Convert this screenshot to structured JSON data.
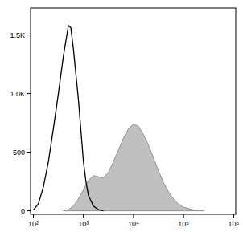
{
  "chart_data": {
    "type": "line",
    "log": "x",
    "xlim": [
      88,
      1100000
    ],
    "xticks": [
      {
        "value": 100,
        "label": "10²"
      },
      {
        "value": 1000,
        "label": "10³"
      },
      {
        "value": 10000,
        "label": "10⁴"
      },
      {
        "value": 100000,
        "label": "10⁵"
      },
      {
        "value": 1000000,
        "label": "10⁶"
      }
    ],
    "ylim": [
      -30,
      1730
    ],
    "yticks": [
      0,
      500,
      {
        "value": 1000,
        "label": "1.0K"
      },
      {
        "value": 1500,
        "label": "1.5K"
      }
    ],
    "grid": false,
    "series": [
      {
        "type": "area",
        "color": "#c0c0c0",
        "x": [
          398,
          501,
          631,
          794,
          1000,
          1259,
          1585,
          1995,
          2512,
          3162,
          3981,
          5012,
          6310,
          7943,
          10000,
          12589,
          15849,
          19953,
          25119,
          31623,
          39811,
          50119,
          63096,
          79433,
          100000,
          158489,
          251189
        ],
        "values": [
          0,
          10,
          40,
          100,
          180,
          260,
          300,
          290,
          280,
          330,
          420,
          520,
          620,
          700,
          740,
          720,
          650,
          560,
          450,
          340,
          240,
          160,
          100,
          55,
          30,
          8,
          0
        ]
      },
      {
        "type": "line",
        "color": "#000000",
        "x": [
          100,
          126,
          158,
          200,
          251,
          316,
          398,
          501,
          562,
          631,
          794,
          1000,
          1122,
          1259,
          1585,
          1995,
          2512
        ],
        "values": [
          5,
          60,
          200,
          420,
          700,
          1000,
          1320,
          1580,
          1560,
          1380,
          950,
          420,
          250,
          130,
          40,
          10,
          0
        ]
      }
    ]
  }
}
